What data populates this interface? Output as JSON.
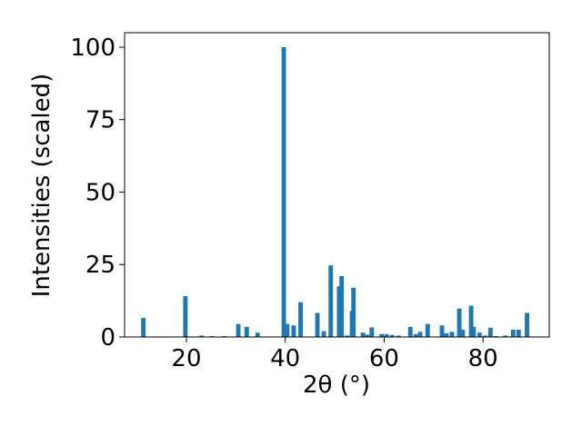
{
  "chart_data": {
    "type": "bar",
    "x_label": "2θ (°)",
    "y_label": "Intensities (scaled)",
    "color": "#1f77b4",
    "x": [
      11.3,
      19.8,
      23.1,
      25.2,
      27.7,
      30.5,
      32.2,
      34.4,
      39.7,
      40.4,
      41.7,
      43.1,
      46.5,
      47.8,
      49.2,
      50.9,
      51.4,
      52.5,
      53.5,
      53.8,
      55.7,
      56.6,
      57.5,
      59.5,
      60.5,
      61.6,
      62.9,
      65.3,
      66.4,
      67.3,
      68.8,
      71.7,
      72.6,
      73.7,
      75.2,
      75.9,
      77.6,
      78.1,
      79.3,
      80.4,
      81.5,
      82.6,
      84.5,
      86.1,
      87.2,
      88.9
    ],
    "values": [
      6.6,
      14.1,
      0.5,
      0.3,
      0.3,
      4.5,
      3.5,
      1.5,
      100,
      4.5,
      4,
      12,
      8.3,
      2,
      24.7,
      17.5,
      21,
      0.5,
      9,
      17,
      1.5,
      0.8,
      3.3,
      1,
      1,
      0.7,
      0.5,
      3.5,
      1,
      1.8,
      4.5,
      4,
      1.3,
      1.8,
      9.8,
      2.5,
      10.8,
      3.5,
      1.5,
      0.5,
      3.2,
      0.3,
      0.5,
      2.5,
      2.5,
      8.3
    ],
    "xlim": [
      7.5,
      93.4
    ],
    "ylim": [
      0,
      105
    ],
    "xticks": [
      20,
      40,
      60,
      80
    ],
    "yticks": [
      0,
      25,
      50,
      75,
      100
    ]
  }
}
